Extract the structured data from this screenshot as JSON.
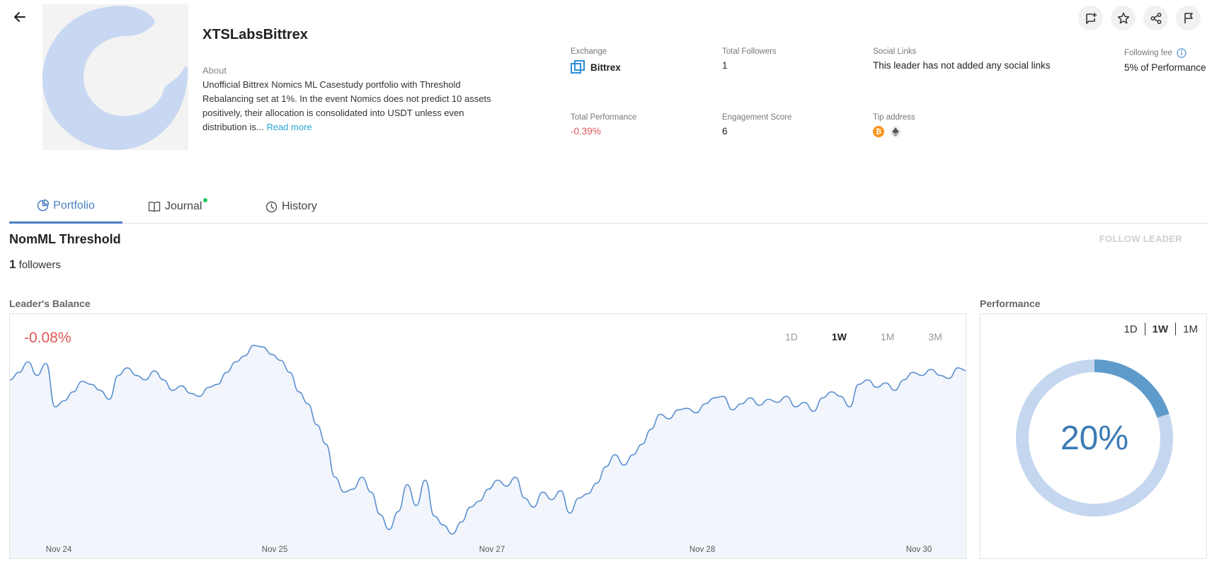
{
  "header": {
    "leader_name": "XTSLabsBittrex",
    "about_label": "About",
    "about_text": "Unofficial Bittrex Nomics ML Casestudy portfolio with Threshold Rebalancing set at 1%. In the event Nomics does not predict 10 assets positively, their allocation is consolidated into USDT unless even distribution is...",
    "read_more": "Read more"
  },
  "stats": {
    "exchange_label": "Exchange",
    "exchange_value": "Bittrex",
    "followers_label": "Total Followers",
    "followers_value": "1",
    "social_label": "Social Links",
    "social_value": "This leader has not added any social links",
    "fee_label": "Following fee",
    "fee_value": "5% of Performance",
    "performance_label": "Total Performance",
    "performance_value": "-0.39%",
    "engagement_label": "Engagement Score",
    "engagement_value": "6",
    "tip_label": "Tip address",
    "tip_icons": [
      "bitcoin-icon",
      "ethereum-icon"
    ]
  },
  "top_actions": [
    "add-portfolio-icon",
    "star-icon",
    "share-icon",
    "flag-icon"
  ],
  "tabs": [
    {
      "label": "Portfolio",
      "icon": "pie-chart-icon",
      "active": true
    },
    {
      "label": "Journal",
      "icon": "book-icon",
      "active": false,
      "dot": true
    },
    {
      "label": "History",
      "icon": "clock-icon",
      "active": false
    }
  ],
  "portfolio": {
    "title": "NomML Threshold",
    "followers_count": "1",
    "followers_text": "followers",
    "follow_button": "FOLLOW LEADER"
  },
  "balance": {
    "section_label": "Leader's Balance",
    "change": "-0.08%",
    "ranges": [
      "1D",
      "1W",
      "1M",
      "3M"
    ],
    "active_range": "1W"
  },
  "performance": {
    "section_label": "Performance",
    "ranges": [
      "1D",
      "1W",
      "1M"
    ],
    "active_range": "1W",
    "value_text": "20%",
    "fraction": 0.2
  },
  "colors": {
    "accent": "#4a7fc1",
    "negative": "#e05757",
    "line": "#5b8fd0",
    "area": "#f2f6fc",
    "donut_fill": "#5e9bcb",
    "donut_track": "#c5d7ef",
    "avatar_shape": "#c8d8f2"
  },
  "chart_data": {
    "type": "area",
    "title": "",
    "xlabel": "",
    "ylabel": "",
    "x_ticks": [
      "Nov 24",
      "Nov 25",
      "Nov 27",
      "Nov 28",
      "Nov 30"
    ],
    "series": [
      {
        "values": [
          0.55,
          0.6,
          0.67,
          0.58,
          0.66,
          0.37,
          0.41,
          0.47,
          0.54,
          0.52,
          0.48,
          0.42,
          0.58,
          0.63,
          0.58,
          0.55,
          0.61,
          0.55,
          0.48,
          0.51,
          0.46,
          0.44,
          0.5,
          0.52,
          0.6,
          0.67,
          0.71,
          0.78,
          0.77,
          0.72,
          0.68,
          0.6,
          0.47,
          0.39,
          0.25,
          0.12,
          -0.1,
          -0.2,
          -0.18,
          -0.1,
          -0.2,
          -0.35,
          -0.45,
          -0.33,
          -0.15,
          -0.29,
          -0.12,
          -0.36,
          -0.42,
          -0.48,
          -0.4,
          -0.3,
          -0.26,
          -0.18,
          -0.12,
          -0.16,
          -0.1,
          -0.24,
          -0.3,
          -0.2,
          -0.25,
          -0.19,
          -0.34,
          -0.24,
          -0.21,
          -0.14,
          -0.03,
          0.05,
          -0.02,
          0.05,
          0.12,
          0.22,
          0.32,
          0.29,
          0.35,
          0.36,
          0.33,
          0.39,
          0.43,
          0.44,
          0.35,
          0.39,
          0.43,
          0.38,
          0.42,
          0.4,
          0.44,
          0.37,
          0.4,
          0.34,
          0.43,
          0.47,
          0.44,
          0.37,
          0.52,
          0.55,
          0.5,
          0.53,
          0.48,
          0.55,
          0.6,
          0.58,
          0.62,
          0.58,
          0.56,
          0.63,
          0.61
        ]
      }
    ],
    "grid": false,
    "legend": "none"
  }
}
